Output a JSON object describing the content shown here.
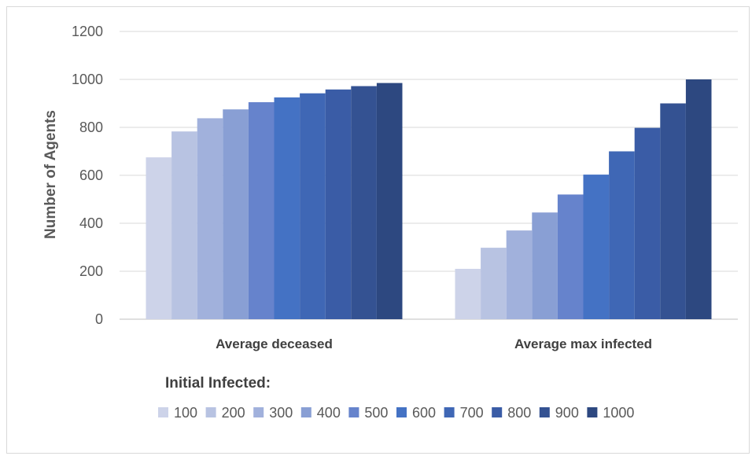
{
  "chart_data": {
    "type": "bar",
    "title": "",
    "xlabel": "",
    "ylabel": "Number of Agents",
    "ylim": [
      0,
      1200
    ],
    "yticks": [
      0,
      200,
      400,
      600,
      800,
      1000,
      1200
    ],
    "grid": true,
    "legend_title": "Initial Infected:",
    "legend_position": "bottom",
    "categories": [
      "Average deceased",
      "Average max infected"
    ],
    "series": [
      {
        "name": "100",
        "color": "#cdd3e9",
        "values": [
          675,
          210
        ]
      },
      {
        "name": "200",
        "color": "#b8c3e2",
        "values": [
          783,
          298
        ]
      },
      {
        "name": "300",
        "color": "#a1b1dc",
        "values": [
          838,
          370
        ]
      },
      {
        "name": "400",
        "color": "#899fd4",
        "values": [
          875,
          445
        ]
      },
      {
        "name": "500",
        "color": "#6683cc",
        "values": [
          905,
          520
        ]
      },
      {
        "name": "600",
        "color": "#4472c4",
        "values": [
          925,
          603
        ]
      },
      {
        "name": "700",
        "color": "#3f67b5",
        "values": [
          942,
          700
        ]
      },
      {
        "name": "800",
        "color": "#3a5ca6",
        "values": [
          958,
          798
        ]
      },
      {
        "name": "900",
        "color": "#345292",
        "values": [
          972,
          900
        ]
      },
      {
        "name": "1000",
        "color": "#2d4880",
        "values": [
          985,
          1000
        ]
      }
    ]
  }
}
